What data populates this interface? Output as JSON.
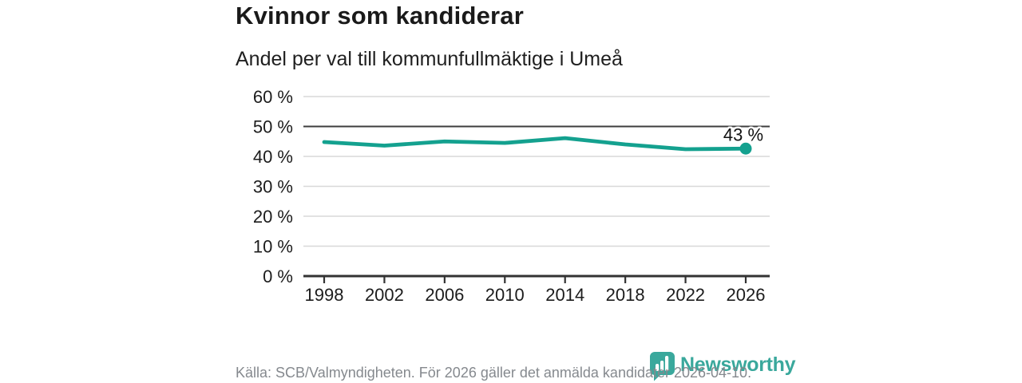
{
  "header": {
    "title": "Kvinnor som kandiderar",
    "subtitle": "Andel per val till kommunfullmäktige i Umeå"
  },
  "chart_data": {
    "type": "line",
    "title": "Kvinnor som kandiderar",
    "subtitle": "Andel per val till kommunfullmäktige i Umeå",
    "categories": [
      "1998",
      "2002",
      "2006",
      "2010",
      "2014",
      "2018",
      "2022",
      "2026"
    ],
    "series": [
      {
        "values": [
          44.8,
          43.6,
          45.0,
          44.5,
          46.1,
          44.0,
          42.4,
          42.6
        ],
        "color": "#14a18f"
      }
    ],
    "end_point_label": "43 %",
    "ylim": [
      0,
      60
    ],
    "y_tick_step": 10,
    "y_tick_labels": [
      "0 %",
      "10 %",
      "20 %",
      "30 %",
      "40 %",
      "50 %",
      "60 %"
    ],
    "reference_line_y": 50,
    "grid": true,
    "legend_position": "none"
  },
  "footer": {
    "source": "Källa: SCB/Valmyndigheten. För 2026 gäller det anmälda kandidater 2026-04-10.",
    "logo_text": "Newsworthy"
  },
  "colors": {
    "accent": "#14a18f",
    "logo_teal": "#3aa89c",
    "grid_line": "#d8d8d8",
    "reference_line": "#3d3d3d",
    "axis_line": "#333333",
    "tick_text": "#1c1c1c",
    "title_text": "#1a1a1a",
    "muted_text": "#85898e"
  }
}
